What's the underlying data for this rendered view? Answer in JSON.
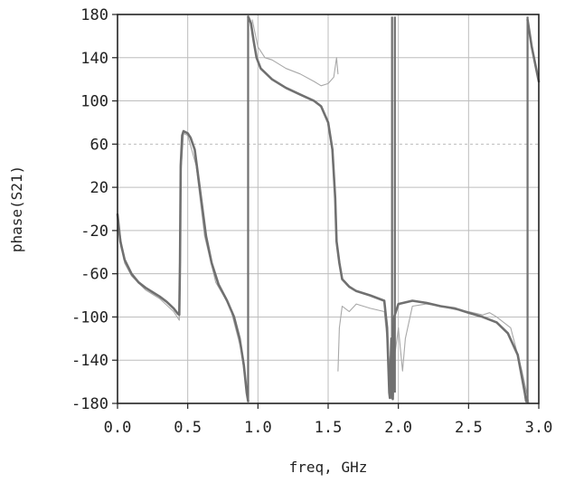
{
  "chart_data": {
    "type": "line",
    "xlabel": "freq, GHz",
    "ylabel": "phase(S21)",
    "xlim": [
      0.0,
      3.0
    ],
    "ylim": [
      -180,
      180
    ],
    "x_ticks": [
      "0.0",
      "0.5",
      "1.0",
      "1.5",
      "2.0",
      "2.5",
      "3.0"
    ],
    "y_ticks": [
      "180",
      "140",
      "100",
      "60",
      "20",
      "-20",
      "-60",
      "-100",
      "-140",
      "-180"
    ],
    "grid": true,
    "dashed_gridline_y": 60,
    "series": [
      {
        "style": "thick",
        "color": "#707070",
        "segments": [
          [
            [
              0.0,
              -5
            ],
            [
              0.02,
              -30
            ],
            [
              0.05,
              -47
            ],
            [
              0.1,
              -60
            ],
            [
              0.15,
              -68
            ],
            [
              0.2,
              -73
            ],
            [
              0.25,
              -77
            ],
            [
              0.3,
              -81
            ],
            [
              0.35,
              -86
            ],
            [
              0.4,
              -92
            ],
            [
              0.43,
              -97
            ],
            [
              0.44,
              -98
            ],
            [
              0.445,
              -50
            ],
            [
              0.45,
              40
            ],
            [
              0.46,
              68
            ],
            [
              0.47,
              72
            ],
            [
              0.5,
              70
            ],
            [
              0.52,
              66
            ],
            [
              0.55,
              55
            ],
            [
              0.57,
              35
            ],
            [
              0.6,
              5
            ],
            [
              0.63,
              -25
            ],
            [
              0.67,
              -50
            ],
            [
              0.72,
              -70
            ],
            [
              0.78,
              -85
            ],
            [
              0.83,
              -100
            ],
            [
              0.87,
              -120
            ],
            [
              0.9,
              -145
            ],
            [
              0.92,
              -170
            ],
            [
              0.93,
              -178
            ]
          ],
          [
            [
              0.93,
              178
            ],
            [
              0.95,
              172
            ],
            [
              0.97,
              155
            ],
            [
              0.99,
              140
            ],
            [
              1.02,
              130
            ],
            [
              1.1,
              120
            ],
            [
              1.2,
              112
            ],
            [
              1.3,
              106
            ],
            [
              1.4,
              100
            ],
            [
              1.45,
              95
            ],
            [
              1.5,
              80
            ],
            [
              1.53,
              55
            ],
            [
              1.55,
              10
            ],
            [
              1.56,
              -30
            ],
            [
              1.58,
              -50
            ],
            [
              1.6,
              -65
            ],
            [
              1.65,
              -72
            ],
            [
              1.7,
              -76
            ],
            [
              1.8,
              -80
            ],
            [
              1.9,
              -85
            ],
            [
              1.92,
              -110
            ],
            [
              1.935,
              -170
            ],
            [
              1.94,
              -175
            ],
            [
              1.95,
              -120
            ],
            [
              1.955,
              -170
            ],
            [
              1.96,
              -176
            ],
            [
              1.97,
              -100
            ],
            [
              2.0,
              -88
            ],
            [
              2.1,
              -85
            ],
            [
              2.2,
              -87
            ],
            [
              2.3,
              -90
            ],
            [
              2.4,
              -92
            ],
            [
              2.5,
              -96
            ],
            [
              2.6,
              -100
            ],
            [
              2.7,
              -105
            ],
            [
              2.78,
              -115
            ],
            [
              2.85,
              -135
            ],
            [
              2.9,
              -170
            ],
            [
              2.91,
              -178
            ]
          ],
          [
            [
              2.92,
              175
            ],
            [
              2.95,
              150
            ],
            [
              3.0,
              118
            ]
          ]
        ]
      },
      {
        "style": "thin",
        "color": "#a8a8a8",
        "segments": [
          [
            [
              0.0,
              -8
            ],
            [
              0.05,
              -50
            ],
            [
              0.1,
              -62
            ],
            [
              0.2,
              -75
            ],
            [
              0.3,
              -83
            ],
            [
              0.4,
              -95
            ],
            [
              0.44,
              -103
            ],
            [
              0.45,
              30
            ],
            [
              0.47,
              70
            ],
            [
              0.5,
              68
            ],
            [
              0.56,
              40
            ],
            [
              0.62,
              -25
            ],
            [
              0.7,
              -68
            ],
            [
              0.8,
              -90
            ],
            [
              0.88,
              -130
            ],
            [
              0.93,
              -178
            ]
          ],
          [
            [
              0.96,
              175
            ],
            [
              1.0,
              150
            ],
            [
              1.05,
              140
            ],
            [
              1.1,
              138
            ],
            [
              1.2,
              130
            ],
            [
              1.3,
              125
            ],
            [
              1.4,
              118
            ],
            [
              1.45,
              114
            ],
            [
              1.5,
              116
            ],
            [
              1.54,
              122
            ],
            [
              1.56,
              140
            ],
            [
              1.57,
              125
            ]
          ],
          [
            [
              1.57,
              -150
            ],
            [
              1.58,
              -110
            ],
            [
              1.6,
              -90
            ],
            [
              1.65,
              -95
            ],
            [
              1.7,
              -88
            ],
            [
              1.8,
              -92
            ],
            [
              1.9,
              -95
            ],
            [
              1.95,
              -160
            ],
            [
              2.0,
              -110
            ],
            [
              2.03,
              -150
            ],
            [
              2.05,
              -120
            ],
            [
              2.1,
              -90
            ],
            [
              2.2,
              -88
            ],
            [
              2.3,
              -90
            ],
            [
              2.4,
              -93
            ],
            [
              2.5,
              -95
            ],
            [
              2.6,
              -98
            ],
            [
              2.65,
              -96
            ],
            [
              2.7,
              -100
            ],
            [
              2.8,
              -110
            ],
            [
              2.88,
              -150
            ],
            [
              2.93,
              -180
            ]
          ]
        ]
      }
    ]
  }
}
